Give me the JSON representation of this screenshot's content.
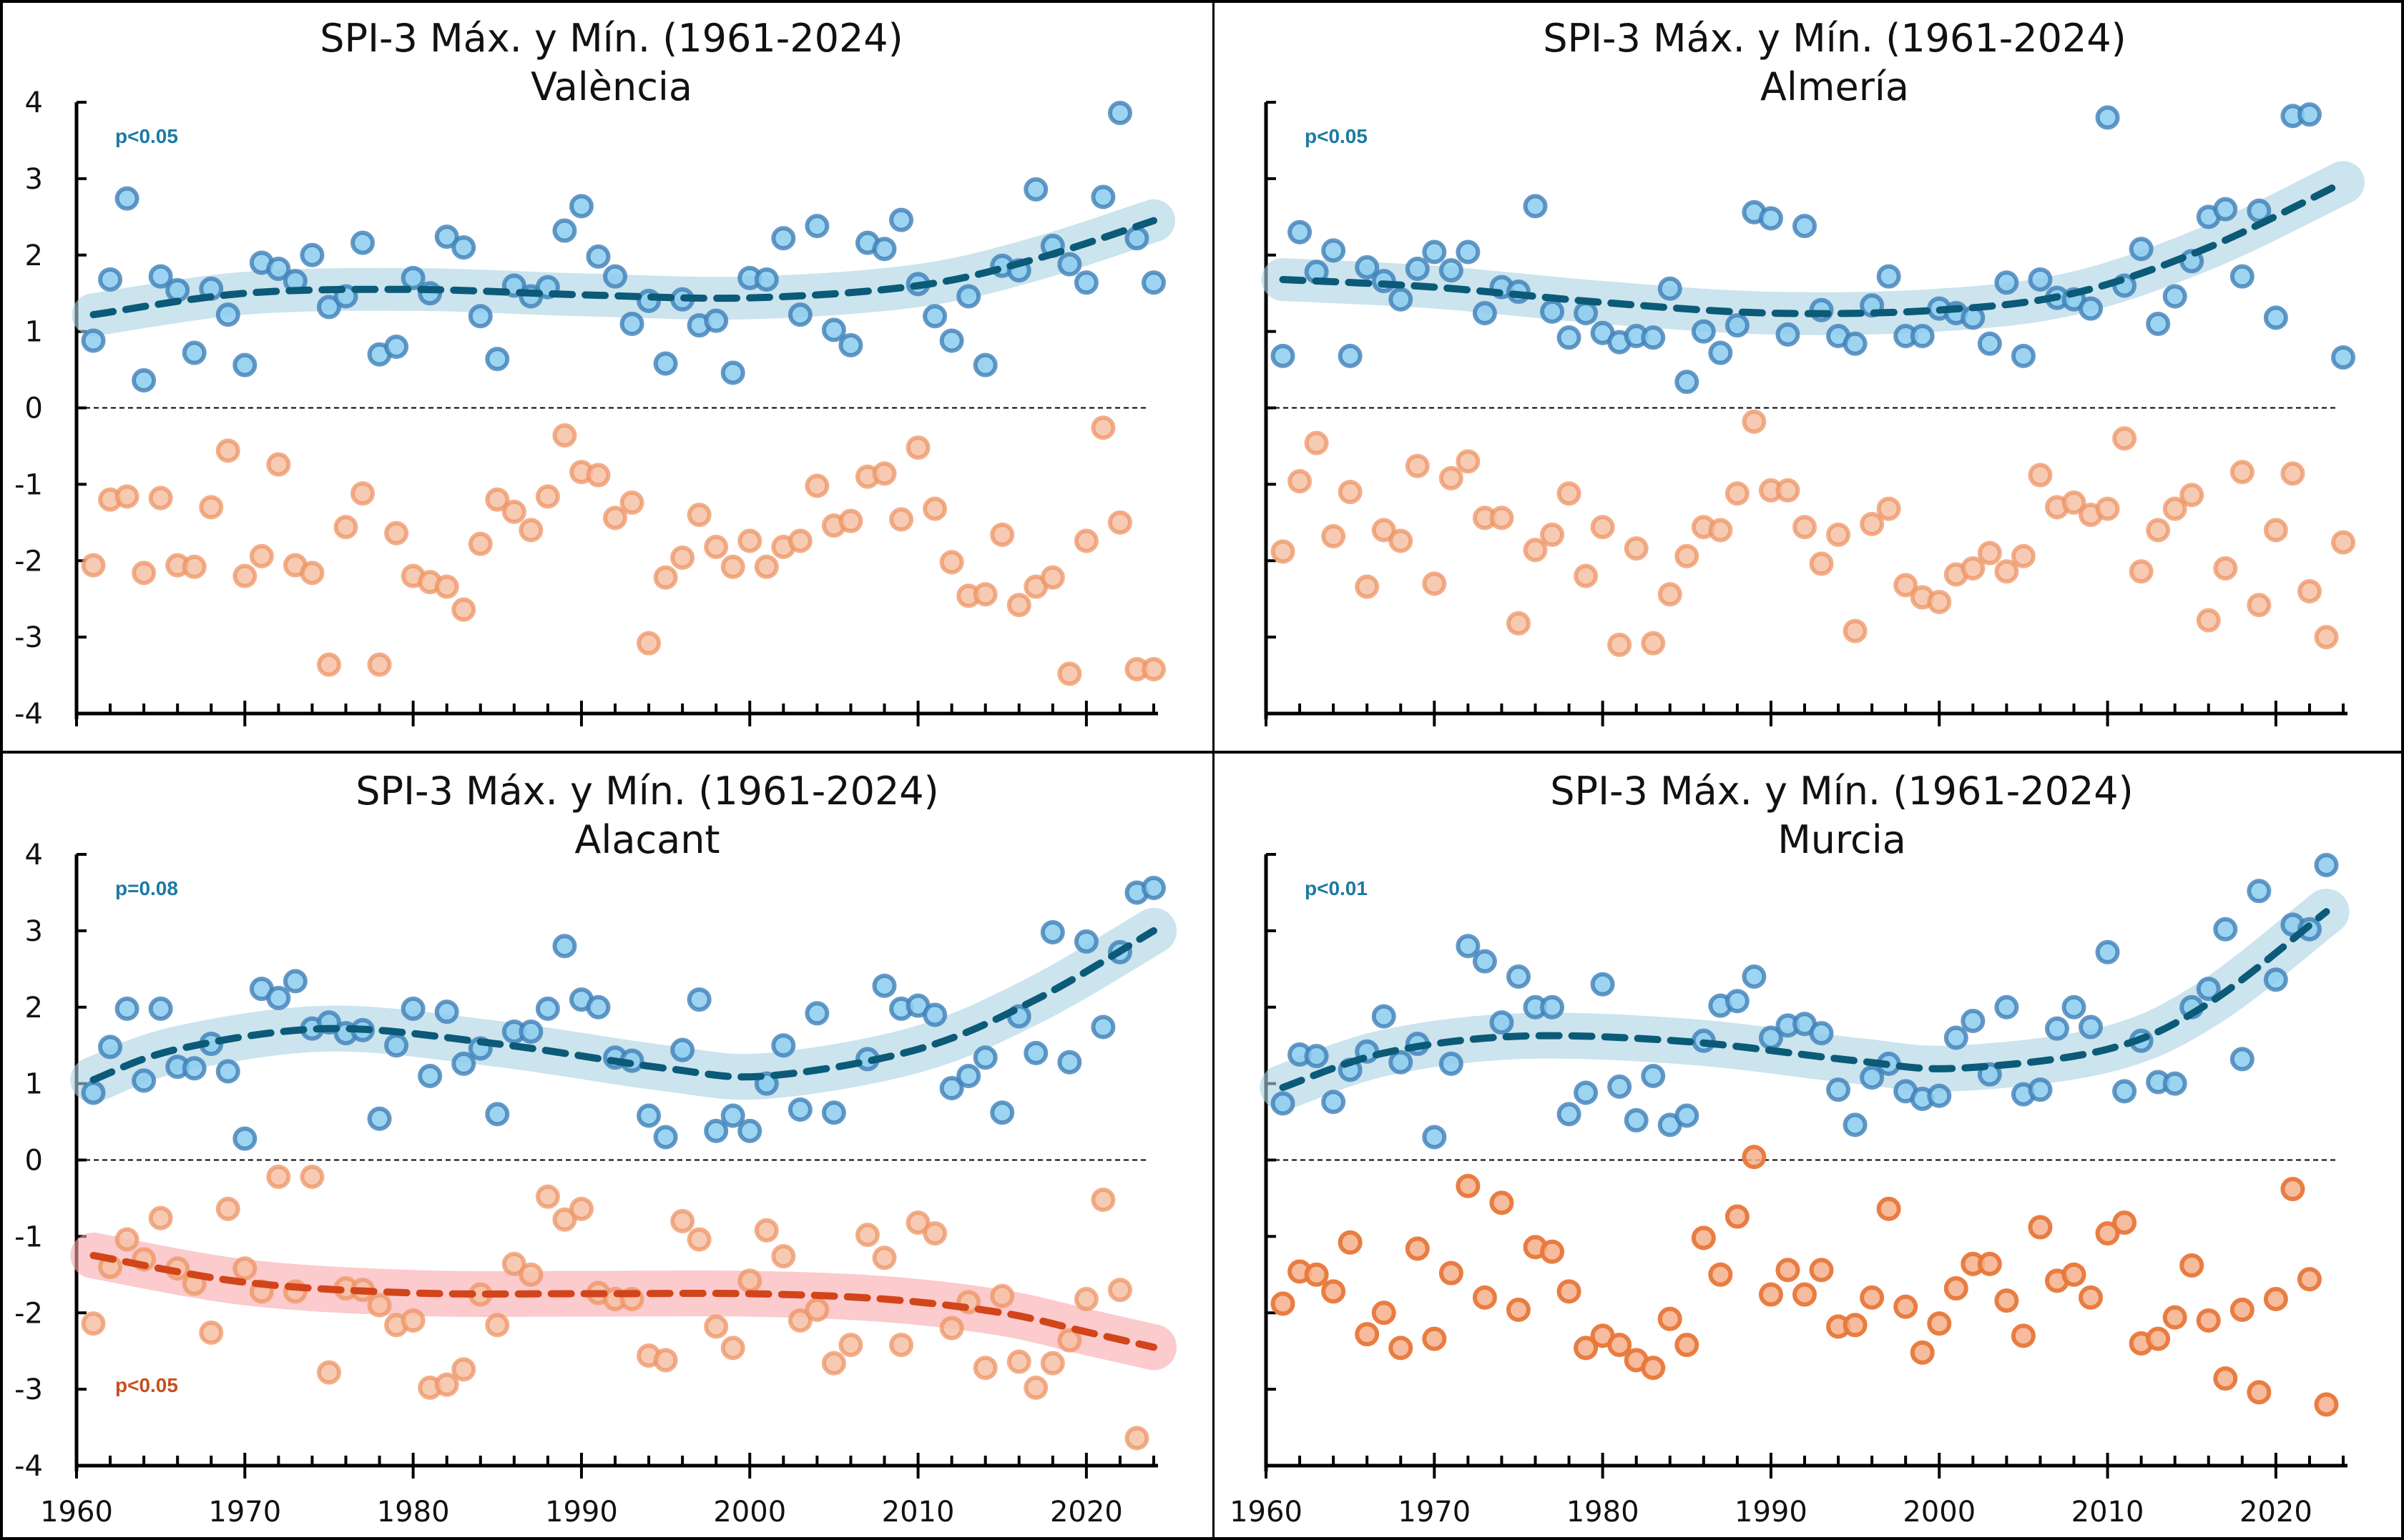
{
  "chart_data": [
    {
      "type": "scatter",
      "title": "SPI-3 Máx. y Mín. (1961-2024)",
      "subtitle": "València",
      "xlabel": "",
      "ylabel": "",
      "xlim": [
        1960,
        2024
      ],
      "ylim": [
        -4,
        4
      ],
      "xticks": [
        "1960",
        "1970",
        "1980",
        "1990",
        "2000",
        "2010",
        "2020"
      ],
      "yticks": [
        "4",
        "3",
        "2",
        "1",
        "0",
        "-1",
        "-2",
        "-3",
        "-4"
      ],
      "show_xtick_labels": false,
      "annotations": [
        {
          "text": "p<0.05",
          "series": "max",
          "position": "top-left"
        }
      ],
      "years_start": 1961,
      "series": [
        {
          "name": "max",
          "color": "#5aa9dc",
          "values": [
            0.88,
            1.68,
            2.74,
            0.36,
            1.72,
            1.54,
            0.72,
            1.56,
            1.22,
            0.56,
            1.9,
            1.82,
            1.66,
            2.0,
            1.32,
            1.46,
            2.16,
            0.7,
            0.8,
            1.7,
            1.5,
            2.24,
            2.1,
            1.2,
            0.64,
            1.6,
            1.46,
            1.58,
            2.32,
            2.64,
            1.98,
            1.72,
            1.1,
            1.4,
            0.58,
            1.42,
            1.08,
            1.14,
            0.46,
            1.7,
            1.68,
            2.22,
            1.22,
            2.38,
            1.02,
            0.82,
            2.16,
            2.08,
            2.46,
            1.62,
            1.2,
            0.88,
            1.46,
            0.56,
            1.86,
            1.8,
            2.86,
            2.12,
            1.88,
            1.64,
            2.76,
            3.86,
            2.22,
            1.64
          ],
          "trend": {
            "x": [
              1961,
              1970,
              1980,
              1990,
              2000,
              2010,
              2017,
              2024
            ],
            "y": [
              1.22,
              1.5,
              1.55,
              1.48,
              1.44,
              1.6,
              1.95,
              2.45
            ],
            "band": 0.28
          }
        },
        {
          "name": "min",
          "color": "#f08a5c",
          "values": [
            -2.06,
            -1.2,
            -1.16,
            -2.16,
            -1.18,
            -2.06,
            -2.08,
            -1.3,
            -0.56,
            -2.2,
            -1.94,
            -0.74,
            -2.06,
            -2.16,
            -3.36,
            -1.56,
            -1.12,
            -3.36,
            -1.64,
            -2.2,
            -2.28,
            -2.34,
            -2.64,
            -1.78,
            -1.2,
            -1.36,
            -1.6,
            -1.16,
            -0.36,
            -0.84,
            -0.88,
            -1.44,
            -1.24,
            -3.08,
            -2.22,
            -1.96,
            -1.4,
            -1.82,
            -2.08,
            -1.74,
            -2.08,
            -1.82,
            -1.74,
            -1.02,
            -1.54,
            -1.48,
            -0.9,
            -0.86,
            -1.46,
            -0.52,
            -1.32,
            -2.02,
            -2.46,
            -2.44,
            -1.66,
            -2.58,
            -2.34,
            -2.22,
            -3.48,
            -1.74,
            -0.26,
            -1.5,
            -3.42,
            -3.42
          ],
          "trend": null
        }
      ]
    },
    {
      "type": "scatter",
      "title": "SPI-3 Máx. y Mín. (1961-2024)",
      "subtitle": "Almería",
      "xlabel": "",
      "ylabel": "",
      "xlim": [
        1960,
        2024
      ],
      "ylim": [
        -4,
        4
      ],
      "xticks": [
        "1960",
        "1970",
        "1980",
        "1990",
        "2000",
        "2010",
        "2020"
      ],
      "yticks": [],
      "show_xtick_labels": false,
      "annotations": [
        {
          "text": "p<0.05",
          "series": "max",
          "position": "top-left"
        }
      ],
      "years_start": 1961,
      "series": [
        {
          "name": "max",
          "color": "#5aa9dc",
          "values": [
            0.68,
            2.3,
            1.78,
            2.06,
            0.68,
            1.84,
            1.66,
            1.42,
            1.82,
            2.04,
            1.8,
            2.04,
            1.24,
            1.58,
            1.52,
            2.64,
            1.26,
            0.92,
            1.24,
            0.98,
            0.86,
            0.94,
            0.92,
            1.56,
            0.34,
            1.0,
            0.72,
            1.08,
            2.56,
            2.48,
            0.96,
            2.38,
            1.28,
            0.94,
            0.84,
            1.34,
            1.72,
            0.94,
            0.94,
            1.3,
            1.24,
            1.18,
            0.84,
            1.64,
            0.68,
            1.68,
            1.44,
            1.42,
            1.3,
            3.8,
            1.6,
            2.08,
            1.1,
            1.46,
            1.92,
            2.5,
            2.6,
            1.72,
            2.58,
            1.18,
            3.82,
            3.84,
            null,
            0.66
          ],
          "trend": {
            "x": [
              1961,
              1970,
              1980,
              1990,
              2000,
              2008,
              2016,
              2024
            ],
            "y": [
              1.68,
              1.58,
              1.38,
              1.24,
              1.28,
              1.5,
              2.1,
              2.95
            ],
            "band": 0.28
          }
        },
        {
          "name": "min",
          "color": "#f08a5c",
          "values": [
            -1.88,
            -0.96,
            -0.46,
            -1.68,
            -1.1,
            -2.34,
            -1.6,
            -1.74,
            -0.76,
            -2.3,
            -0.92,
            -0.7,
            -1.44,
            -1.44,
            -2.82,
            -1.86,
            -1.66,
            -1.12,
            -2.2,
            -1.56,
            -3.1,
            -1.84,
            -3.08,
            -2.44,
            -1.94,
            -1.56,
            -1.6,
            -1.12,
            -0.18,
            -1.08,
            -1.08,
            -1.56,
            -2.04,
            -1.66,
            -2.92,
            -1.52,
            -1.32,
            -2.32,
            -2.48,
            -2.54,
            -2.18,
            -2.1,
            -1.9,
            -2.14,
            -1.94,
            -0.88,
            -1.3,
            -1.24,
            -1.4,
            -1.32,
            -0.4,
            -2.14,
            -1.6,
            -1.32,
            -1.14,
            -2.78,
            -2.1,
            -0.84,
            -2.58,
            -1.6,
            -0.86,
            -2.4,
            -3.0,
            -1.76
          ],
          "trend": null
        }
      ]
    },
    {
      "type": "scatter",
      "title": "SPI-3 Máx. y Mín. (1961-2024)",
      "subtitle": "Alacant",
      "xlabel": "",
      "ylabel": "",
      "xlim": [
        1960,
        2024
      ],
      "ylim": [
        -4,
        4
      ],
      "xticks": [
        "1960",
        "1970",
        "1980",
        "1990",
        "2000",
        "2010",
        "2020"
      ],
      "yticks": [
        "4",
        "3",
        "2",
        "1",
        "0",
        "-1",
        "-2",
        "-3",
        "-4"
      ],
      "show_xtick_labels": true,
      "annotations": [
        {
          "text": "p=0.08",
          "series": "max",
          "position": "top-left"
        },
        {
          "text": "p<0.05",
          "series": "min",
          "position": "bottom-left"
        }
      ],
      "years_start": 1961,
      "series": [
        {
          "name": "max",
          "color": "#5aa9dc",
          "values": [
            0.88,
            1.48,
            1.98,
            1.04,
            1.98,
            1.22,
            1.2,
            1.52,
            1.16,
            0.28,
            2.24,
            2.12,
            2.34,
            1.72,
            1.8,
            1.66,
            1.7,
            0.54,
            1.5,
            1.98,
            1.1,
            1.94,
            1.26,
            1.46,
            0.6,
            1.68,
            1.68,
            1.98,
            2.8,
            2.1,
            2.0,
            1.34,
            1.3,
            0.58,
            0.3,
            1.44,
            2.1,
            0.38,
            0.58,
            0.38,
            1.0,
            1.5,
            0.66,
            1.92,
            0.62,
            null,
            1.32,
            2.28,
            1.98,
            2.02,
            1.9,
            0.94,
            1.1,
            1.34,
            0.62,
            1.88,
            1.4,
            2.98,
            1.28,
            2.86,
            1.74,
            2.72,
            3.5,
            3.56
          ],
          "trend": {
            "x": [
              1961,
              1966,
              1975,
              1985,
              1995,
              2001,
              2010,
              2017,
              2024
            ],
            "y": [
              1.05,
              1.45,
              1.72,
              1.52,
              1.2,
              1.1,
              1.45,
              2.1,
              3.0
            ],
            "band": 0.3
          }
        },
        {
          "name": "min",
          "color": "#f08a5c",
          "values": [
            -2.14,
            -1.4,
            -1.04,
            -1.3,
            -0.76,
            -1.42,
            -1.62,
            -2.26,
            -0.64,
            -1.42,
            -1.72,
            -0.22,
            -1.72,
            -0.22,
            -2.78,
            -1.68,
            -1.7,
            -1.9,
            -2.16,
            -2.1,
            -2.98,
            -2.94,
            -2.74,
            -1.76,
            -2.16,
            -1.36,
            -1.5,
            -0.48,
            -0.78,
            -0.64,
            -1.74,
            -1.82,
            -1.82,
            -2.56,
            -2.62,
            -0.8,
            -1.04,
            -2.18,
            -2.46,
            -1.58,
            -0.92,
            -1.26,
            -2.1,
            -1.96,
            -2.66,
            -2.42,
            -0.98,
            -1.28,
            -2.42,
            -0.82,
            -0.96,
            -2.2,
            -1.86,
            -2.72,
            -1.78,
            -2.64,
            -2.98,
            -2.66,
            -2.36,
            -1.82,
            -0.52,
            -1.7,
            -3.64,
            null
          ],
          "trend": {
            "x": [
              1961,
              1970,
              1980,
              1990,
              2000,
              2008,
              2015,
              2020,
              2024
            ],
            "y": [
              -1.25,
              -1.6,
              -1.74,
              -1.75,
              -1.75,
              -1.82,
              -2.0,
              -2.25,
              -2.45
            ],
            "band": 0.3
          }
        }
      ]
    },
    {
      "type": "scatter",
      "title": "SPI-3 Máx. y Mín. (1961-2024)",
      "subtitle": "Murcia",
      "xlabel": "",
      "ylabel": "",
      "xlim": [
        1960,
        2024
      ],
      "ylim": [
        -4,
        4
      ],
      "xticks": [
        "1960",
        "1970",
        "1980",
        "1990",
        "2000",
        "2010",
        "2020"
      ],
      "yticks": [],
      "show_xtick_labels": true,
      "annotations": [
        {
          "text": "p<0.01",
          "series": "max",
          "position": "top-left"
        }
      ],
      "years_start": 1961,
      "series": [
        {
          "name": "max",
          "color": "#5aa9dc",
          "values": [
            0.74,
            1.38,
            1.36,
            0.76,
            1.18,
            1.42,
            1.88,
            1.28,
            1.52,
            0.3,
            1.26,
            2.8,
            2.6,
            1.8,
            2.4,
            2.0,
            2.0,
            0.6,
            0.88,
            2.3,
            0.96,
            0.52,
            1.1,
            0.46,
            0.58,
            1.56,
            2.02,
            2.08,
            2.4,
            1.6,
            1.76,
            1.78,
            1.66,
            0.92,
            0.46,
            1.08,
            1.26,
            0.9,
            0.8,
            0.84,
            1.6,
            1.82,
            1.12,
            2.0,
            0.86,
            0.92,
            1.72,
            2.0,
            1.74,
            2.72,
            0.9,
            1.56,
            1.02,
            1.0,
            2.0,
            2.24,
            3.02,
            1.32,
            3.52,
            2.36,
            3.08,
            3.02,
            3.86,
            null
          ],
          "trend": {
            "x": [
              1961,
              1967,
              1975,
              1985,
              1995,
              2001,
              2010,
              2016,
              2023
            ],
            "y": [
              0.95,
              1.4,
              1.62,
              1.55,
              1.3,
              1.2,
              1.45,
              2.05,
              3.25
            ],
            "band": 0.3
          }
        },
        {
          "name": "min",
          "color": "#ec7a3e",
          "values": [
            -1.88,
            -1.46,
            -1.5,
            -1.72,
            -1.08,
            -2.28,
            -2.0,
            -2.46,
            -1.16,
            -2.34,
            -1.48,
            -0.34,
            -1.8,
            -0.56,
            -1.96,
            -1.14,
            -1.2,
            -1.72,
            -2.46,
            -2.3,
            -2.42,
            -2.62,
            -2.72,
            -2.08,
            -2.42,
            -1.02,
            -1.5,
            -0.74,
            0.04,
            -1.76,
            -1.44,
            -1.76,
            -1.44,
            -2.18,
            -2.16,
            -1.8,
            -0.64,
            -1.92,
            -2.52,
            -2.14,
            -1.68,
            -1.36,
            -1.36,
            -1.84,
            -2.3,
            -0.88,
            -1.58,
            -1.5,
            -1.8,
            -0.96,
            -0.82,
            -2.4,
            -2.34,
            -2.06,
            -1.38,
            -2.1,
            -2.86,
            -1.96,
            -3.04,
            -1.82,
            -0.38,
            -1.56,
            -3.2,
            null
          ],
          "trend": null
        }
      ]
    }
  ]
}
